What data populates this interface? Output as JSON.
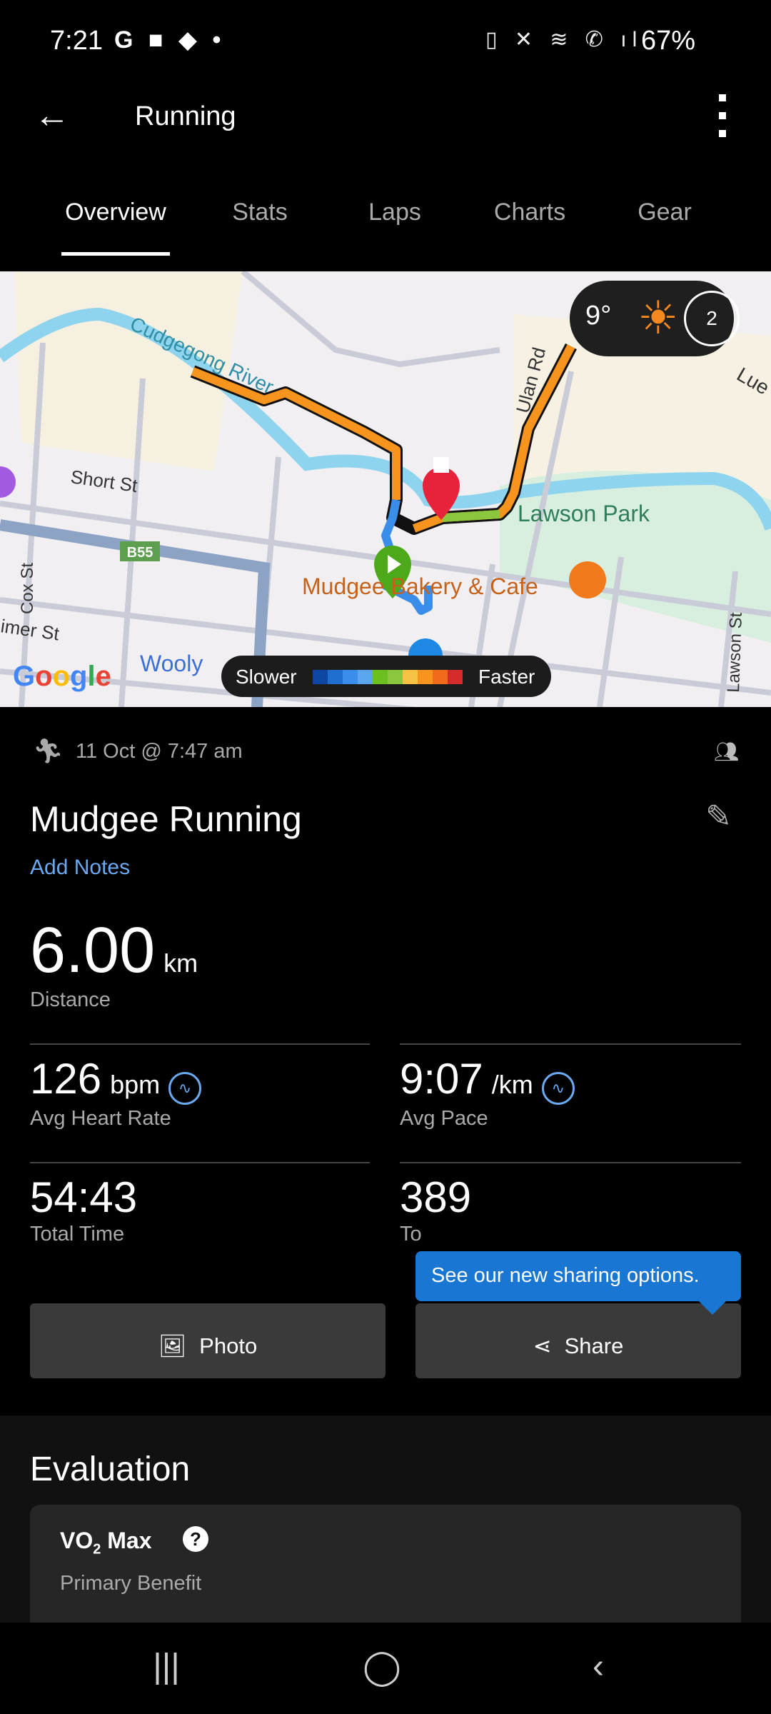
{
  "status_bar": {
    "time": "7:21",
    "left_icons": [
      "google-icon",
      "folder-icon",
      "alert-icon",
      "dot-icon"
    ],
    "right_icons": [
      "battery-saver-icon",
      "mute-icon",
      "wifi-icon",
      "wifi-call-icon",
      "signal-icon"
    ],
    "battery": "67%"
  },
  "toolbar": {
    "title": "Running"
  },
  "tabs": [
    {
      "label": "Overview",
      "active": true
    },
    {
      "label": "Stats"
    },
    {
      "label": "Laps"
    },
    {
      "label": "Charts"
    },
    {
      "label": "Gear"
    }
  ],
  "map": {
    "labels": {
      "river": "Cudgegong River",
      "short_st": "Short St",
      "ulan_rd": "Ulan Rd",
      "lawson_park": "Lawson Park",
      "bakery": "Mudgee Bakery & Cafe",
      "cox_st": "Cox St",
      "lawson_st": "Lawson St",
      "b55": "B55",
      "mer_st": "imer St",
      "wooly": "Wooly",
      "lue": "Lue"
    },
    "google_logo": "Google",
    "weather": {
      "temp": "9°",
      "condition": "sun-icon",
      "wind": "2"
    },
    "legend": {
      "slower": "Slower",
      "faster": "Faster",
      "colors": [
        "#0d47a1",
        "#1e6fd0",
        "#3a8de8",
        "#5aa7f0",
        "#6bbf1e",
        "#8cc63f",
        "#f7c243",
        "#f7941d",
        "#f26b1d",
        "#d62b2b"
      ]
    }
  },
  "activity": {
    "date": "11 Oct @ 7:47 am",
    "name": "Mudgee Running",
    "add_notes": "Add Notes",
    "distance": "6.00",
    "distance_unit": "km",
    "distance_label": "Distance"
  },
  "stats": [
    {
      "value": "126",
      "unit": "bpm",
      "label": "Avg Heart Rate",
      "icon": "heart-rate-icon"
    },
    {
      "value": "9:07",
      "unit": "/km",
      "label": "Avg Pace",
      "icon": "heart-rate-icon"
    },
    {
      "value": "54:43",
      "label": "Total Time"
    },
    {
      "value": "389",
      "label": "To"
    }
  ],
  "tooltip": "See our new sharing options.",
  "buttons": {
    "photo": "Photo",
    "share": "Share"
  },
  "evaluation": {
    "title": "Evaluation",
    "vo2": "VO",
    "vo2_sub": "2",
    "vo2_suffix": " Max",
    "help": "?",
    "primary": "Primary Benefit"
  },
  "nav": {
    "recents": "|||",
    "home": "◯",
    "back": "‹"
  }
}
